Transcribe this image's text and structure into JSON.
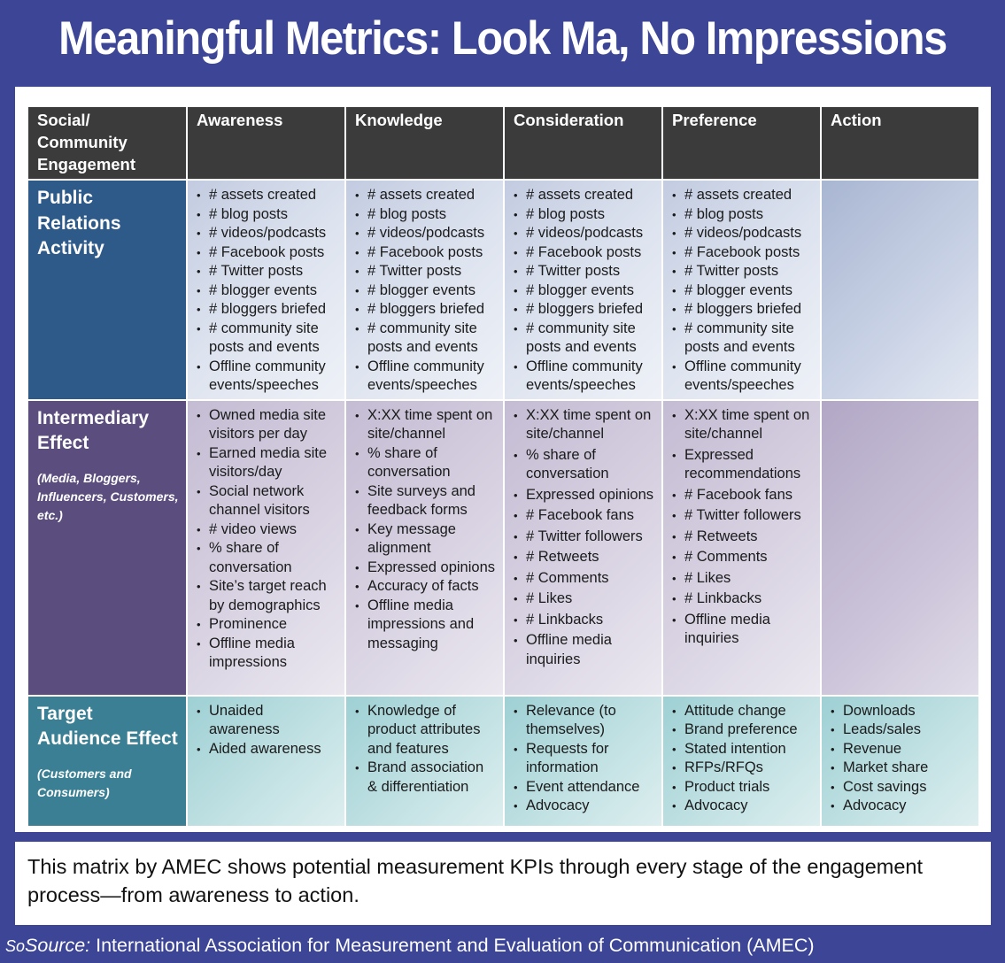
{
  "title": "Meaningful Metrics: Look Ma, No Impressions",
  "columns": [
    "Social/ Community Engagement",
    "Awareness",
    "Knowledge",
    "Consideration",
    "Preference",
    "Action"
  ],
  "rows": [
    {
      "label": "Public Relations Activity",
      "sub": "",
      "cells": [
        [
          "# assets created",
          "# blog posts",
          "# videos/podcasts",
          "# Facebook posts",
          "# Twitter posts",
          "# blogger events",
          "# bloggers briefed",
          "# community site posts and events",
          "Offline community events/speeches"
        ],
        [
          "# assets created",
          "# blog posts",
          "# videos/podcasts",
          "# Facebook posts",
          "# Twitter posts",
          "# blogger events",
          "# bloggers briefed",
          "# community site posts and events",
          "Offline community events/speeches"
        ],
        [
          "# assets created",
          "# blog posts",
          "# videos/podcasts",
          "# Facebook posts",
          "# Twitter posts",
          "# blogger events",
          "# bloggers briefed",
          "# community site posts and events",
          "Offline community events/speeches"
        ],
        [
          "# assets created",
          "# blog posts",
          "# videos/podcasts",
          "# Facebook posts",
          "# Twitter posts",
          "# blogger events",
          "# bloggers briefed",
          "# community site posts and events",
          "Offline community events/speeches"
        ],
        []
      ]
    },
    {
      "label": "Intermediary Effect",
      "sub": "(Media, Bloggers, Influencers, Customers, etc.)",
      "cells": [
        [
          "Owned media site visitors per day",
          "Earned media site visitors/day",
          "Social network channel visitors",
          "# video views",
          "% share of conversation",
          "Site’s target reach by demographics",
          "Prominence",
          "Offline media impressions"
        ],
        [
          "X:XX time spent on site/channel",
          "% share of conversation",
          "Site surveys and feedback forms",
          "Key message alignment",
          "Expressed opinions",
          "Accuracy of facts",
          "Offline media impressions and messaging"
        ],
        [
          "X:XX time spent on site/channel",
          "% share of conversation",
          "Expressed opinions",
          "# Facebook fans",
          "# Twitter followers",
          "# Retweets",
          "# Comments",
          "# Likes",
          "# Linkbacks",
          "Offline media inquiries"
        ],
        [
          "X:XX time spent on site/channel",
          "Expressed recommendations",
          "# Facebook fans",
          "# Twitter followers",
          "# Retweets",
          "# Comments",
          "# Likes",
          "# Linkbacks",
          "Offline media inquiries"
        ],
        []
      ]
    },
    {
      "label": "Target Audience Effect",
      "sub": "(Customers and Consumers)",
      "cells": [
        [
          "Unaided awareness",
          "Aided awareness"
        ],
        [
          "Knowledge of product attributes and features",
          "Brand association & differentiation"
        ],
        [
          "Relevance (to themselves)",
          "Requests for information",
          "Event attendance",
          "Advocacy"
        ],
        [
          "Attitude change",
          "Brand preference",
          "Stated intention",
          "RFPs/RFQs",
          "Product trials",
          "Advocacy"
        ],
        [
          "Downloads",
          "Leads/sales",
          "Revenue",
          "Market share",
          "Cost savings",
          "Advocacy"
        ]
      ]
    }
  ],
  "caption": "This matrix by AMEC shows potential measurement KPIs through every stage of the engagement process—from awareness to action.",
  "source": {
    "prefix": "So",
    "label": "Source:",
    "text": "International Association for Measurement and Evaluation of Communication (AMEC)"
  }
}
